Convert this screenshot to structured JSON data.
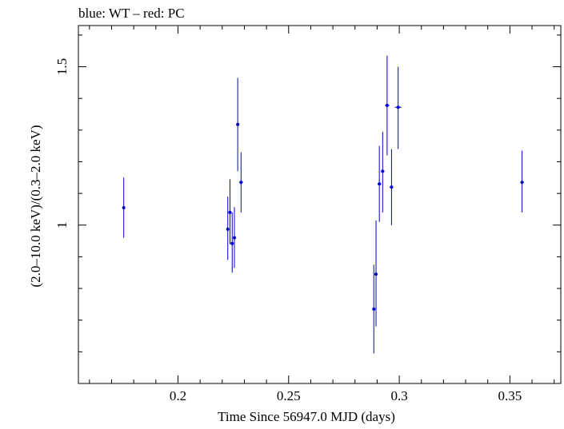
{
  "chart_data": {
    "type": "scatter",
    "title": "blue: WT – red: PC",
    "xlabel": "Time Since 56947.0 MJD (days)",
    "ylabel": "(2.0–10.0 keV)/(0.3–2.0 keV)",
    "xlim": [
      0.155,
      0.373
    ],
    "ylim": [
      0.5,
      1.63
    ],
    "x_ticks": [
      0.2,
      0.25,
      0.3,
      0.35
    ],
    "x_tick_labels": [
      "0.2",
      "0.25",
      "0.3",
      "0.35"
    ],
    "y_ticks": [
      1,
      1.5
    ],
    "y_tick_labels": [
      "1",
      "1.5"
    ],
    "grid": false,
    "series": [
      {
        "name": "WT",
        "color": "#0000cc",
        "points": [
          {
            "x": 0.1755,
            "y": 1.055,
            "ylo": 0.96,
            "yhi": 1.15,
            "xerr": 0.0005
          },
          {
            "x": 0.2225,
            "y": 0.987,
            "ylo": 0.89,
            "yhi": 1.09,
            "xerr": 0.0005
          },
          {
            "x": 0.2235,
            "y": 1.04,
            "ylo": 0.94,
            "yhi": 1.145,
            "xerr": 0.0005
          },
          {
            "x": 0.2245,
            "y": 0.942,
            "ylo": 0.85,
            "yhi": 1.04,
            "xerr": 0.0005
          },
          {
            "x": 0.2255,
            "y": 0.96,
            "ylo": 0.865,
            "yhi": 1.057,
            "xerr": 0.0005
          },
          {
            "x": 0.227,
            "y": 1.318,
            "ylo": 1.17,
            "yhi": 1.465,
            "xerr": 0.0005
          },
          {
            "x": 0.2285,
            "y": 1.135,
            "ylo": 1.04,
            "yhi": 1.23,
            "xerr": 0.0008
          },
          {
            "x": 0.2885,
            "y": 0.735,
            "ylo": 0.595,
            "yhi": 0.875,
            "xerr": 0.0005
          },
          {
            "x": 0.2895,
            "y": 0.845,
            "ylo": 0.68,
            "yhi": 1.015,
            "xerr": 0.0005
          },
          {
            "x": 0.291,
            "y": 1.13,
            "ylo": 1.01,
            "yhi": 1.25,
            "xerr": 0.0008
          },
          {
            "x": 0.2925,
            "y": 1.17,
            "ylo": 1.04,
            "yhi": 1.295,
            "xerr": 0.0008
          },
          {
            "x": 0.2945,
            "y": 1.378,
            "ylo": 1.22,
            "yhi": 1.535,
            "xerr": 0.001
          },
          {
            "x": 0.2965,
            "y": 1.12,
            "ylo": 1.0,
            "yhi": 1.24,
            "xerr": 0.0008
          },
          {
            "x": 0.2995,
            "y": 1.372,
            "ylo": 1.24,
            "yhi": 1.5,
            "xerr": 0.0015
          },
          {
            "x": 0.3555,
            "y": 1.135,
            "ylo": 1.04,
            "yhi": 1.235,
            "xerr": 0.0008
          }
        ]
      }
    ]
  }
}
